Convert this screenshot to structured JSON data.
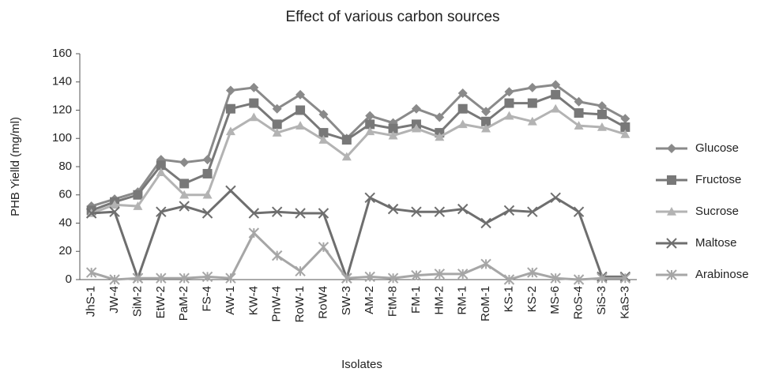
{
  "chart_data": {
    "type": "line",
    "title": "Effect of various carbon sources",
    "x_label": "Isolates",
    "y_label": "PHB Yielld (mg/ml)",
    "categories": [
      "JhS-1",
      "JW-4",
      "SiM-2",
      "EtW-2",
      "PaM-2",
      "FS-4",
      "AW-1",
      "KW-4",
      "PnW-4",
      "RoW-1",
      "RoW4",
      "SW-3",
      "AM-2",
      "FtM-8",
      "FM-1",
      "HM-2",
      "RM-1",
      "RoM-1",
      "KS-1",
      "KS-2",
      "MS-6",
      "RoS-4",
      "SiS-3",
      "KaS-3"
    ],
    "series": [
      {
        "name": "Glucose",
        "color": "#8a8a8a",
        "marker": "diamond",
        "values": [
          52,
          57,
          62,
          85,
          83,
          85,
          134,
          136,
          121,
          131,
          117,
          100,
          116,
          111,
          121,
          115,
          132,
          119,
          133,
          136,
          138,
          126,
          123,
          114
        ]
      },
      {
        "name": "Fructose",
        "color": "#787878",
        "marker": "square",
        "values": [
          49,
          55,
          60,
          81,
          68,
          75,
          121,
          125,
          110,
          120,
          104,
          99,
          110,
          107,
          110,
          104,
          121,
          112,
          125,
          125,
          131,
          118,
          117,
          108
        ]
      },
      {
        "name": "Sucrose",
        "color": "#b3b3b3",
        "marker": "triangle",
        "values": [
          47,
          53,
          52,
          76,
          60,
          60,
          105,
          115,
          104,
          109,
          99,
          87,
          105,
          102,
          107,
          101,
          110,
          107,
          116,
          112,
          121,
          109,
          108,
          103
        ]
      },
      {
        "name": "Maltose",
        "color": "#6e6e6e",
        "marker": "x",
        "values": [
          47,
          48,
          1,
          48,
          52,
          47,
          63,
          47,
          48,
          47,
          47,
          1,
          58,
          50,
          48,
          48,
          50,
          40,
          49,
          48,
          58,
          48,
          2,
          2
        ]
      },
      {
        "name": "Arabinose",
        "color": "#a6a6a6",
        "marker": "star",
        "values": [
          5,
          0,
          1,
          1,
          1,
          2,
          1,
          33,
          17,
          6,
          23,
          1,
          2,
          1,
          3,
          4,
          4,
          11,
          0,
          5,
          1,
          0,
          1,
          1
        ]
      }
    ],
    "ylim": [
      0,
      160
    ],
    "yticks": [
      0,
      20,
      40,
      60,
      80,
      100,
      120,
      140,
      160
    ],
    "grid": false,
    "legend": "right"
  }
}
